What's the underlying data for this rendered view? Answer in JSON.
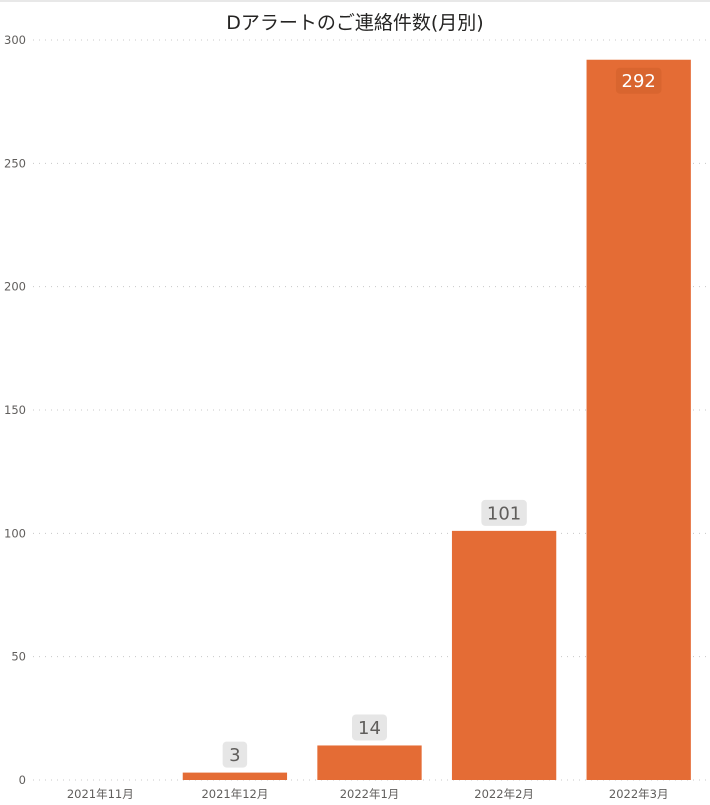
{
  "chart_data": {
    "type": "bar",
    "title": "Dアラートのご連絡件数(月別)",
    "categories": [
      "2021年11月",
      "2021年12月",
      "2022年1月",
      "2022年2月",
      "2022年3月"
    ],
    "values": [
      0,
      3,
      14,
      101,
      292
    ],
    "data_labels": [
      "",
      "3",
      "14",
      "101",
      "292"
    ],
    "xlabel": "",
    "ylabel": "",
    "ylim": [
      0,
      300
    ],
    "yticks": [
      0,
      50,
      100,
      150,
      200,
      250,
      300
    ],
    "ytick_labels": [
      "0",
      "50",
      "100",
      "150",
      "200",
      "250",
      "300"
    ],
    "grid": true,
    "legend": "none",
    "bar_color": "#e46c35"
  }
}
